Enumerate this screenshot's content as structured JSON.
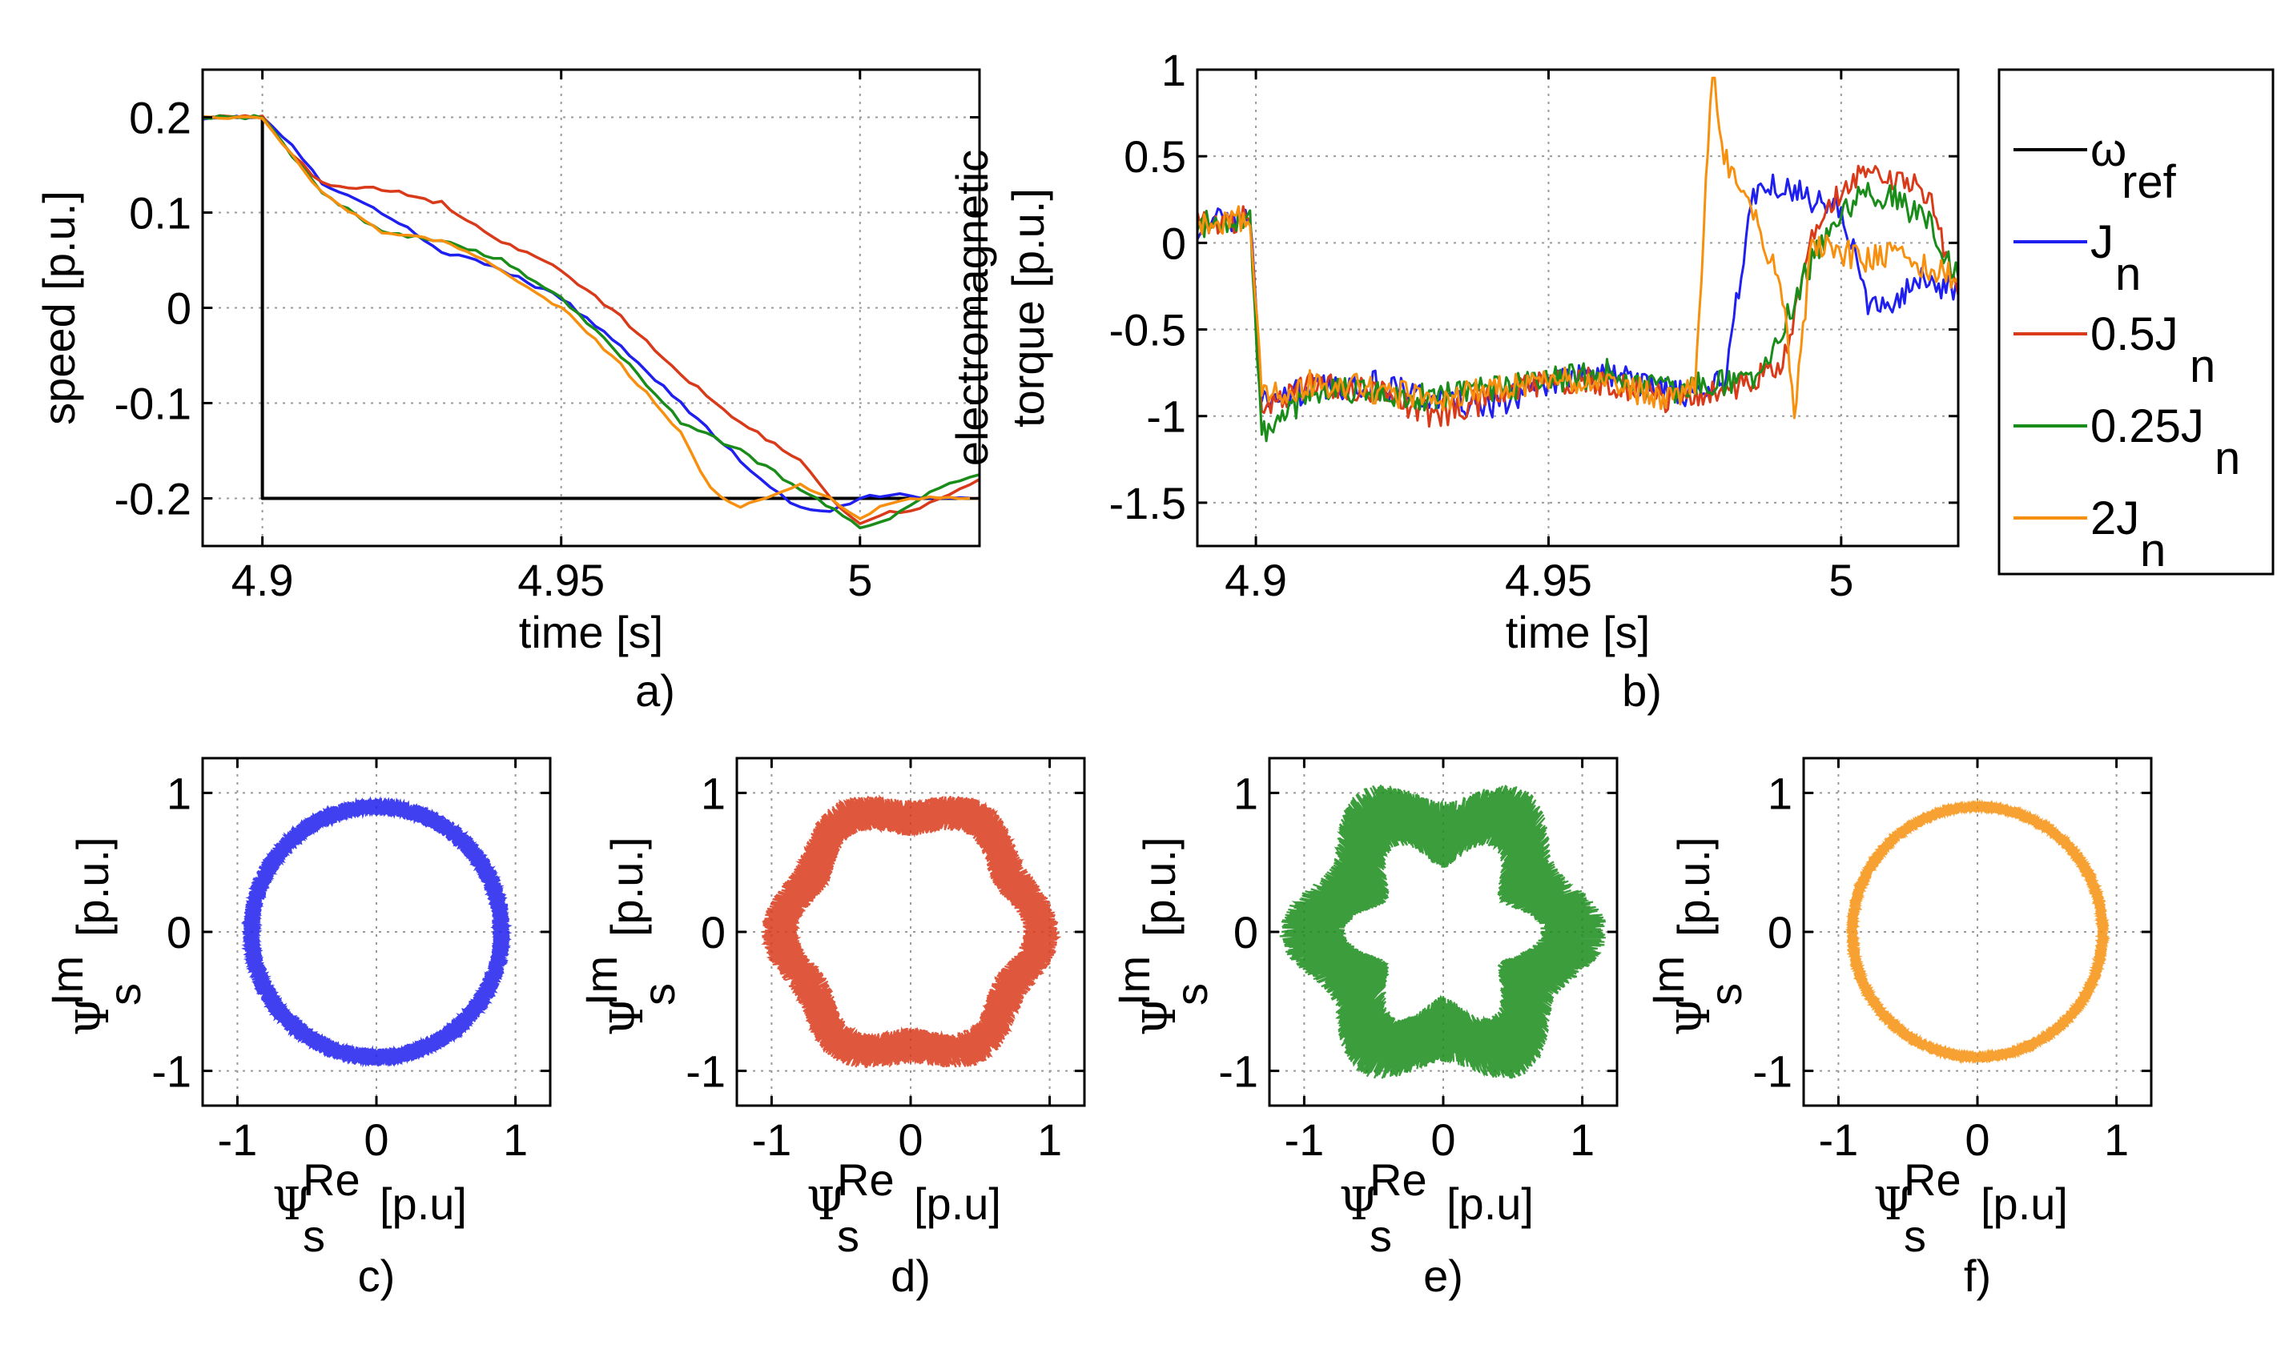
{
  "chart_data": [
    {
      "id": "a",
      "type": "line",
      "panel_label": "a)",
      "xlabel": "time [s]",
      "ylabel": "speed [p.u.]",
      "xlim": [
        4.89,
        5.02
      ],
      "ylim": [
        -0.25,
        0.25
      ],
      "xticks": [
        4.9,
        4.95,
        5.0
      ],
      "xtick_labels": [
        "4.9",
        "4.95",
        "5"
      ],
      "yticks": [
        0.2,
        0.1,
        0,
        -0.1,
        -0.2
      ],
      "ytick_labels": [
        "0.2",
        "0.1",
        "0",
        "-0.1",
        "-0.2"
      ],
      "grid": true,
      "series": [
        {
          "name": "ωref",
          "color": "#000000",
          "x": [
            4.89,
            4.9,
            4.9,
            4.9,
            5.02
          ],
          "y": [
            0.2,
            0.2,
            -0.2,
            -0.2,
            -0.2
          ]
        },
        {
          "name": "Jn",
          "color": "#1f1fef",
          "x": [
            4.89,
            4.9,
            4.905,
            4.91,
            4.92,
            4.93,
            4.94,
            4.95,
            4.96,
            4.97,
            4.98,
            4.985,
            4.99,
            4.995,
            5.0,
            5.005,
            5.01,
            5.015,
            5.02
          ],
          "y": [
            0.2,
            0.2,
            0.17,
            0.13,
            0.1,
            0.06,
            0.04,
            0.01,
            -0.04,
            -0.1,
            -0.16,
            -0.19,
            -0.21,
            -0.215,
            -0.2,
            -0.195,
            -0.2,
            -0.2,
            -0.2
          ]
        },
        {
          "name": "0.5Jn",
          "color": "#d93a1a",
          "x": [
            4.89,
            4.9,
            4.905,
            4.91,
            4.92,
            4.93,
            4.94,
            4.95,
            4.96,
            4.97,
            4.98,
            4.99,
            4.995,
            5.0,
            5.005,
            5.01,
            5.015,
            5.02
          ],
          "y": [
            0.2,
            0.2,
            0.16,
            0.13,
            0.125,
            0.11,
            0.07,
            0.04,
            -0.01,
            -0.07,
            -0.12,
            -0.16,
            -0.2,
            -0.225,
            -0.215,
            -0.21,
            -0.195,
            -0.18
          ]
        },
        {
          "name": "0.25Jn",
          "color": "#1a8c1a",
          "x": [
            4.89,
            4.9,
            4.905,
            4.91,
            4.92,
            4.93,
            4.94,
            4.95,
            4.96,
            4.97,
            4.98,
            4.99,
            5.0,
            5.005,
            5.01,
            5.015,
            5.02
          ],
          "y": [
            0.2,
            0.2,
            0.16,
            0.12,
            0.08,
            0.07,
            0.05,
            0.01,
            -0.05,
            -0.12,
            -0.15,
            -0.19,
            -0.23,
            -0.22,
            -0.2,
            -0.185,
            -0.175
          ]
        },
        {
          "name": "2Jn",
          "color": "#f7900f",
          "x": [
            4.89,
            4.9,
            4.905,
            4.91,
            4.92,
            4.93,
            4.94,
            4.95,
            4.96,
            4.97,
            4.975,
            4.98,
            4.99,
            4.995,
            5.0,
            5.005,
            5.01,
            5.015,
            5.02
          ],
          "y": [
            0.2,
            0.2,
            0.16,
            0.12,
            0.08,
            0.07,
            0.04,
            0.0,
            -0.06,
            -0.13,
            -0.19,
            -0.21,
            -0.185,
            -0.2,
            -0.22,
            -0.205,
            -0.2,
            -0.2,
            -0.2
          ]
        }
      ]
    },
    {
      "id": "b",
      "type": "line",
      "panel_label": "b)",
      "xlabel": "time [s]",
      "ylabel_line1": "electromagnetic",
      "ylabel_line2": "torque [p.u.]",
      "xlim": [
        4.89,
        5.02
      ],
      "ylim": [
        -1.75,
        1.0
      ],
      "xticks": [
        4.9,
        4.95,
        5.0
      ],
      "xtick_labels": [
        "4.9",
        "4.95",
        "5"
      ],
      "yticks": [
        1,
        0.5,
        0,
        -0.5,
        -1,
        -1.5
      ],
      "ytick_labels": [
        "1",
        "0.5",
        "0",
        "-0.5",
        "-1",
        "-1.5"
      ],
      "grid": true,
      "series": [
        {
          "name": "Jn",
          "color": "#1f1fef",
          "x": [
            4.89,
            4.899,
            4.901,
            4.91,
            4.92,
            4.93,
            4.94,
            4.95,
            4.96,
            4.97,
            4.975,
            4.98,
            4.985,
            4.99,
            4.995,
            5.0,
            5.005,
            5.01,
            5.015,
            5.02
          ],
          "y": [
            0.1,
            0.15,
            -0.9,
            -0.85,
            -0.8,
            -0.9,
            -0.95,
            -0.8,
            -0.75,
            -0.85,
            -0.9,
            -0.8,
            0.3,
            0.35,
            0.25,
            0.2,
            -0.4,
            -0.3,
            -0.2,
            -0.3
          ]
        },
        {
          "name": "0.5Jn",
          "color": "#d93a1a",
          "x": [
            4.89,
            4.899,
            4.901,
            4.91,
            4.92,
            4.93,
            4.94,
            4.95,
            4.96,
            4.97,
            4.98,
            4.985,
            4.99,
            4.995,
            5.0,
            5.005,
            5.01,
            5.015,
            5.02
          ],
          "y": [
            0.1,
            0.15,
            -0.95,
            -0.8,
            -0.85,
            -1.0,
            -0.9,
            -0.8,
            -0.8,
            -0.9,
            -0.85,
            -0.8,
            -0.7,
            0.0,
            0.3,
            0.45,
            0.35,
            0.3,
            -0.3
          ]
        },
        {
          "name": "0.25Jn",
          "color": "#1a8c1a",
          "x": [
            4.89,
            4.899,
            4.901,
            4.91,
            4.92,
            4.93,
            4.94,
            4.95,
            4.96,
            4.97,
            4.98,
            4.985,
            4.99,
            4.995,
            5.0,
            5.005,
            5.01,
            5.015,
            5.02
          ],
          "y": [
            0.1,
            0.15,
            -1.1,
            -0.85,
            -0.85,
            -0.9,
            -0.85,
            -0.8,
            -0.75,
            -0.85,
            -0.8,
            -0.8,
            -0.5,
            -0.1,
            0.2,
            0.3,
            0.25,
            0.1,
            -0.2
          ]
        },
        {
          "name": "2Jn",
          "color": "#f7900f",
          "x": [
            4.89,
            4.899,
            4.901,
            4.91,
            4.92,
            4.93,
            4.94,
            4.95,
            4.96,
            4.97,
            4.975,
            4.978,
            4.98,
            4.985,
            4.99,
            4.992,
            4.995,
            5.0,
            5.005,
            5.01,
            5.015,
            5.02
          ],
          "y": [
            0.1,
            0.15,
            -0.9,
            -0.8,
            -0.85,
            -0.9,
            -0.85,
            -0.8,
            -0.8,
            -0.9,
            -0.85,
            0.98,
            0.5,
            0.2,
            -0.3,
            -1.0,
            0.0,
            -0.05,
            -0.1,
            -0.05,
            -0.15,
            -0.2
          ]
        }
      ]
    },
    {
      "id": "c",
      "type": "scatter",
      "panel_label": "c)",
      "series_name": "Jn",
      "color": "#1f1fef",
      "xlabel": "Ψ",
      "xlabel_sup": "Re",
      "xlabel_sub": "s",
      "xlabel_unit": "[p.u]",
      "ylabel": "Ψ",
      "ylabel_sup": "Im",
      "ylabel_sub": "s",
      "ylabel_unit": "[p.u.]",
      "xlim": [
        -1.25,
        1.25
      ],
      "ylim": [
        -1.25,
        1.25
      ],
      "xticks": [
        -1,
        0,
        1
      ],
      "xtick_labels": [
        "-1",
        "0",
        "1"
      ],
      "yticks": [
        1,
        0,
        -1
      ],
      "ytick_labels": [
        "1",
        "0",
        "-1"
      ],
      "grid": true,
      "radius": 0.9,
      "spread": 0.06,
      "lobes": 0,
      "lobe_amp": 0
    },
    {
      "id": "d",
      "type": "scatter",
      "panel_label": "d)",
      "series_name": "0.5Jn",
      "color": "#d93a1a",
      "xlabel": "Ψ",
      "xlabel_sup": "Re",
      "xlabel_sub": "s",
      "xlabel_unit": "[p.u]",
      "ylabel": "Ψ",
      "ylabel_sup": "Im",
      "ylabel_sub": "s",
      "ylabel_unit": "[p.u.]",
      "xlim": [
        -1.25,
        1.25
      ],
      "ylim": [
        -1.25,
        1.25
      ],
      "xticks": [
        -1,
        0,
        1
      ],
      "xtick_labels": [
        "-1",
        "0",
        "1"
      ],
      "yticks": [
        1,
        0,
        -1
      ],
      "ytick_labels": [
        "1",
        "0",
        "-1"
      ],
      "grid": true,
      "radius": 0.88,
      "spread": 0.13,
      "lobes": 6,
      "lobe_amp": 0.06
    },
    {
      "id": "e",
      "type": "scatter",
      "panel_label": "e)",
      "series_name": "0.25Jn",
      "color": "#1a8c1a",
      "xlabel": "Ψ",
      "xlabel_sup": "Re",
      "xlabel_sub": "s",
      "xlabel_unit": "[p.u]",
      "ylabel": "Ψ",
      "ylabel_sup": "Im",
      "ylabel_sub": "s",
      "ylabel_unit": "[p.u.]",
      "xlim": [
        -1.25,
        1.25
      ],
      "ylim": [
        -1.25,
        1.25
      ],
      "xticks": [
        -1,
        0,
        1
      ],
      "xtick_labels": [
        "-1",
        "0",
        "1"
      ],
      "yticks": [
        1,
        0,
        -1
      ],
      "ytick_labels": [
        "1",
        "0",
        "-1"
      ],
      "grid": true,
      "radius": 0.82,
      "spread": 0.24,
      "lobes": 6,
      "lobe_amp": 0.12
    },
    {
      "id": "f",
      "type": "scatter",
      "panel_label": "f)",
      "series_name": "2Jn",
      "color": "#f7900f",
      "xlabel": "Ψ",
      "xlabel_sup": "Re",
      "xlabel_sub": "s",
      "xlabel_unit": "[p.u]",
      "ylabel": "Ψ",
      "ylabel_sup": "Im",
      "ylabel_sub": "s",
      "ylabel_unit": "[p.u.]",
      "xlim": [
        -1.25,
        1.25
      ],
      "ylim": [
        -1.25,
        1.25
      ],
      "xticks": [
        -1,
        0,
        1
      ],
      "xtick_labels": [
        "-1",
        "0",
        "1"
      ],
      "yticks": [
        1,
        0,
        -1
      ],
      "ytick_labels": [
        "1",
        "0",
        "-1"
      ],
      "grid": true,
      "radius": 0.9,
      "spread": 0.035,
      "lobes": 0,
      "lobe_amp": 0
    }
  ],
  "legend": {
    "placement": "right of panel b",
    "entries": [
      {
        "main": "ω",
        "sub": "ref",
        "color": "#000000"
      },
      {
        "main": "J",
        "sub": "n",
        "color": "#1f1fef"
      },
      {
        "main": "0.5J",
        "sub": "n",
        "color": "#d93a1a"
      },
      {
        "main": "0.25J",
        "sub": "n",
        "color": "#1a8c1a"
      },
      {
        "main": "2J",
        "sub": "n",
        "color": "#f7900f"
      }
    ]
  }
}
